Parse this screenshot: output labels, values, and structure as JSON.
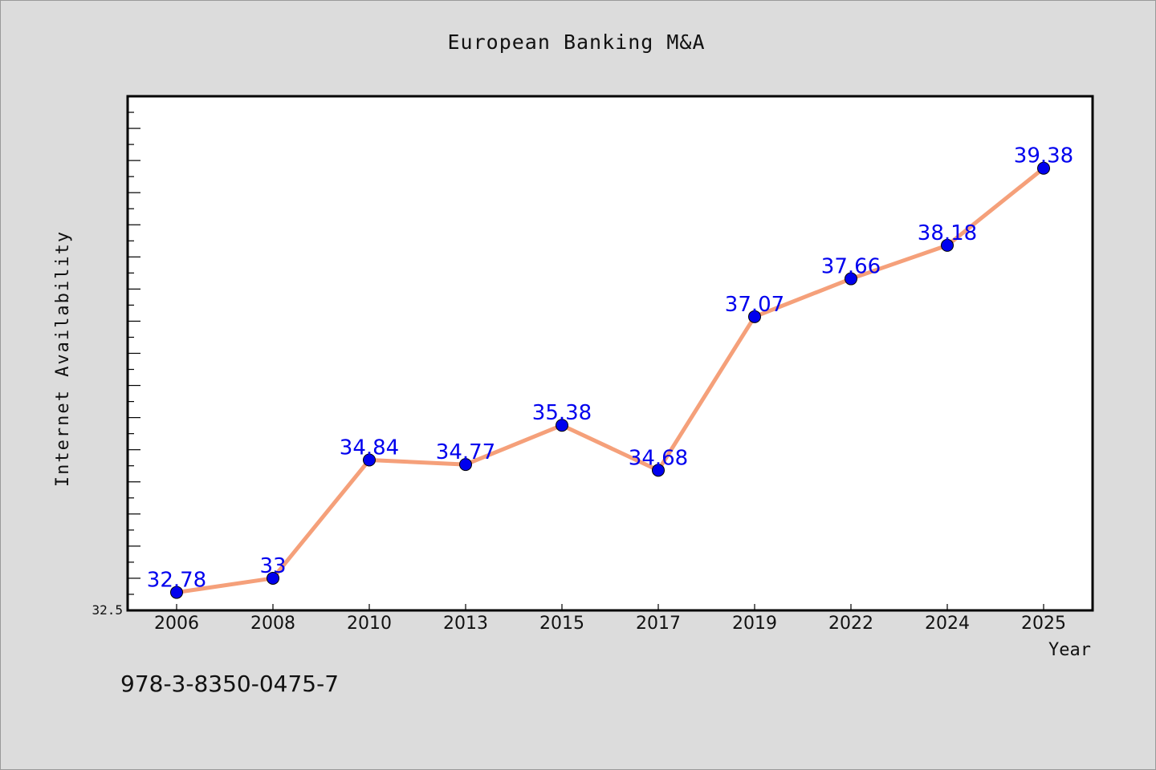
{
  "chart_data": {
    "type": "line",
    "title": "European Banking M&A",
    "xlabel": "Year",
    "ylabel": "Internet Availability",
    "categories": [
      "2006",
      "2008",
      "2010",
      "2013",
      "2015",
      "2017",
      "2019",
      "2022",
      "2024",
      "2025"
    ],
    "series": [
      {
        "values": [
          32.78,
          33,
          34.84,
          34.77,
          35.38,
          34.68,
          37.07,
          37.66,
          38.18,
          39.38
        ],
        "labels": [
          "32.78",
          "33",
          "34.84",
          "34.77",
          "35.38",
          "34.68",
          "37.07",
          "37.66",
          "38.18",
          "39.38"
        ],
        "line_color": "#f5a07a",
        "marker_color": "#0000ee",
        "label_color": "#0000ee"
      }
    ],
    "ylim": [
      32.5,
      40.5
    ],
    "y_tick_labels": [
      "32.5"
    ],
    "grid": false,
    "legend": "none"
  },
  "footer": {
    "code": "978-3-8350-0475-7"
  }
}
